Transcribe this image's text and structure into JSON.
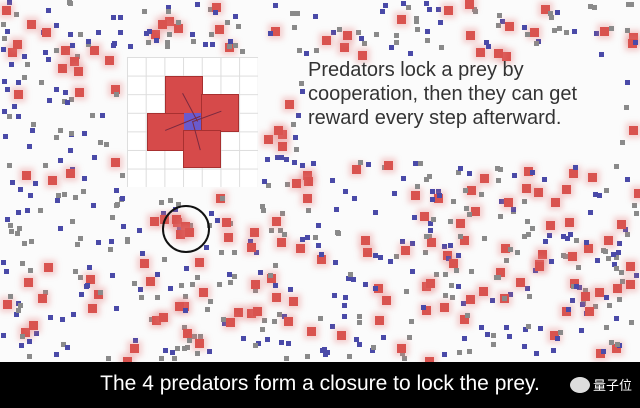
{
  "overlay": {
    "message": "Predators lock a prey by cooperation, then they can get reward every step afterward."
  },
  "caption": {
    "text": "The 4 predators form a closure to lock the prey."
  },
  "watermark": {
    "label": "量子位"
  },
  "colors": {
    "predator": "#d9534f",
    "prey": "#4a4aa8",
    "wall": "#8a8a8a",
    "caption_bg": "#000000"
  }
}
